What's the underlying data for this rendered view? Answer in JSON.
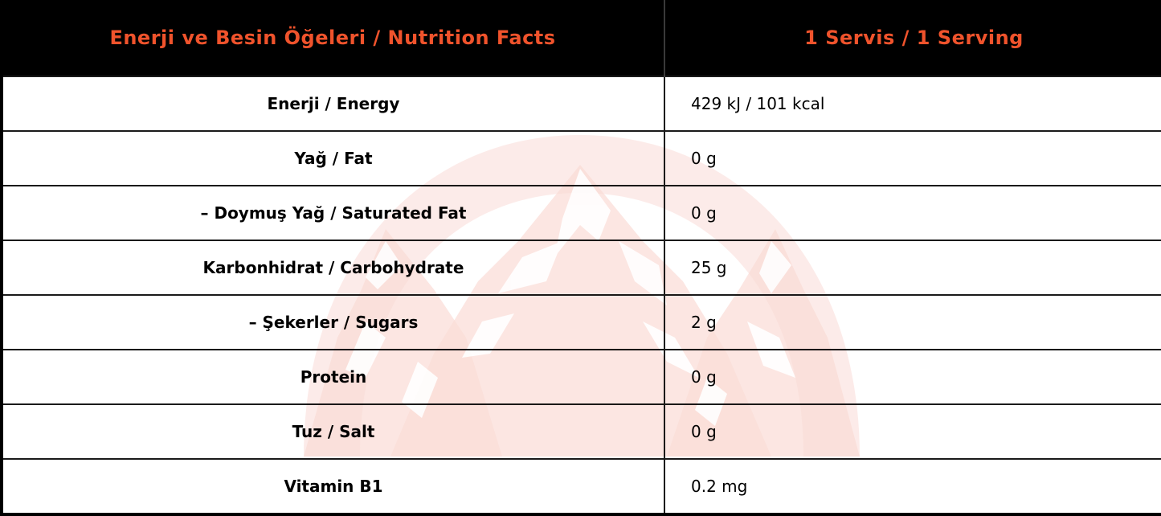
{
  "header": {
    "nutrient_col": "Enerji ve Besin Öğeleri / Nutrition Facts",
    "serving_col": "1 Servis / 1 Serving"
  },
  "rows": [
    {
      "name": "Enerji / Energy",
      "value": "429 kJ / 101 kcal"
    },
    {
      "name": "Yağ / Fat",
      "value": "0 g"
    },
    {
      "name": "– Doymuş Yağ / Saturated Fat",
      "value": "0 g"
    },
    {
      "name": "Karbonhidrat / Carbohydrate",
      "value": "25 g"
    },
    {
      "name": "– Şekerler / Sugars",
      "value": "2 g"
    },
    {
      "name": "Protein",
      "value": "0 g"
    },
    {
      "name": "Tuz / Salt",
      "value": "0 g"
    },
    {
      "name": "Vitamin B1",
      "value": "0.2 mg"
    }
  ],
  "colors": {
    "header_bg": "#000000",
    "header_text": "#f0532c",
    "watermark": "#f9d6cf"
  },
  "watermark_icon": "mountain-logo-watermark"
}
